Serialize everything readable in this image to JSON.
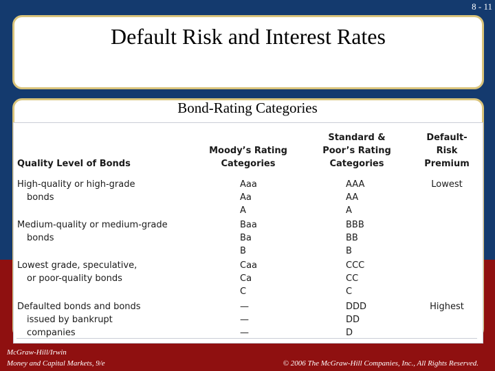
{
  "slide_number": "8 - 11",
  "title": "Default Risk and Interest Rates",
  "subtitle": "Bond-Rating Categories",
  "table": {
    "headers": {
      "quality": "Quality Level of Bonds",
      "moodys": [
        "Moody’s Rating",
        "Categories"
      ],
      "sp": [
        "Standard &",
        "Poor’s Rating",
        "Categories"
      ],
      "premium": [
        "Default-",
        "Risk",
        "Premium"
      ]
    },
    "groups": [
      {
        "quality": [
          "High-quality or high-grade",
          "bonds"
        ],
        "moodys": [
          "Aaa",
          "Aa",
          "A"
        ],
        "sp": [
          "AAA",
          "AA",
          "A"
        ],
        "premium": "Lowest"
      },
      {
        "quality": [
          "Medium-quality or medium-grade",
          "bonds"
        ],
        "moodys": [
          "Baa",
          "Ba",
          "B"
        ],
        "sp": [
          "BBB",
          "BB",
          "B"
        ],
        "premium": ""
      },
      {
        "quality": [
          "Lowest grade, speculative,",
          "or poor-quality bonds"
        ],
        "moodys": [
          "Caa",
          "Ca",
          "C"
        ],
        "sp": [
          "CCC",
          "CC",
          "C"
        ],
        "premium": ""
      },
      {
        "quality": [
          "Defaulted bonds and bonds",
          "issued by bankrupt",
          "companies"
        ],
        "moodys": [
          "—",
          "—",
          "—"
        ],
        "sp": [
          "DDD",
          "DD",
          "D"
        ],
        "premium": "Highest"
      }
    ]
  },
  "footer": {
    "publisher": "McGraw-Hill/Irwin",
    "book": "Money and Capital Markets, 9/e",
    "copyright": "© 2006 The McGraw-Hill Companies, Inc., All Rights Reserved."
  }
}
